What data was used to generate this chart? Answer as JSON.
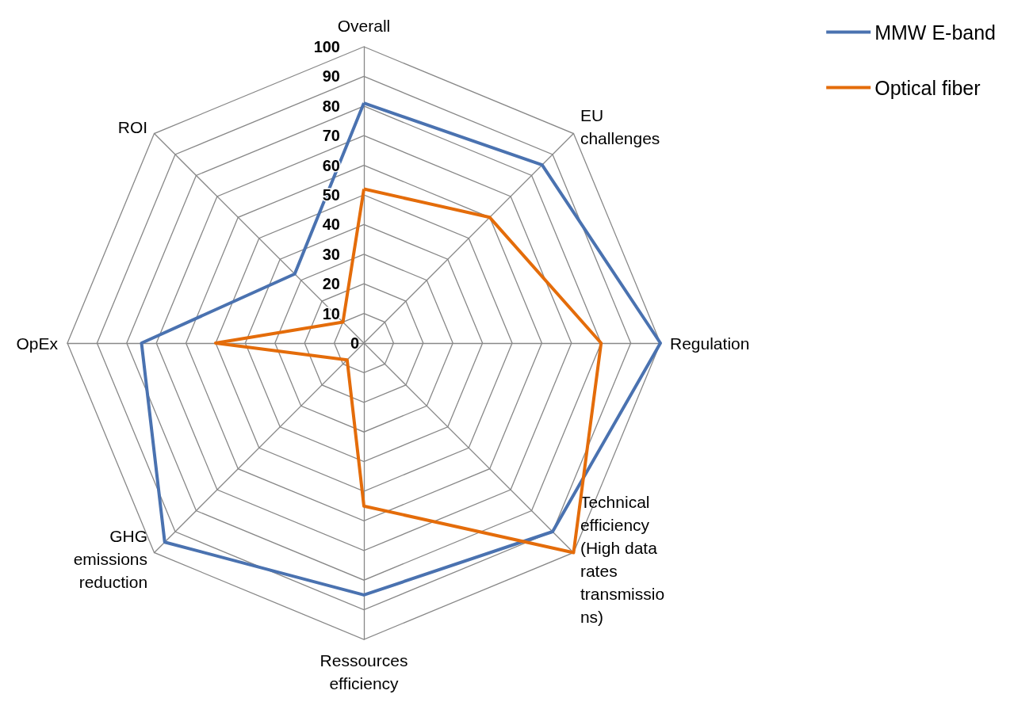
{
  "chart_data": {
    "type": "radar",
    "categories": [
      "Overall",
      "EU challenges",
      "Regulation",
      "Technical efficiency (High data rates transmissions)",
      "Ressources efficiency",
      "GHG emissions reduction",
      "OpEx",
      "ROI"
    ],
    "series": [
      {
        "name": "MMW E-band",
        "color": "#4a72b0",
        "values": [
          81,
          85,
          100,
          90,
          85,
          95,
          75,
          33
        ]
      },
      {
        "name": "Optical fiber",
        "color": "#e46c0a",
        "values": [
          52,
          60,
          80,
          100,
          55,
          8,
          50,
          10
        ]
      }
    ],
    "ylim": [
      0,
      100
    ],
    "yticks": [
      0,
      10,
      20,
      30,
      40,
      50,
      60,
      70,
      80,
      90,
      100
    ],
    "legend": "top right",
    "marker": "none",
    "line_style": "solid"
  }
}
